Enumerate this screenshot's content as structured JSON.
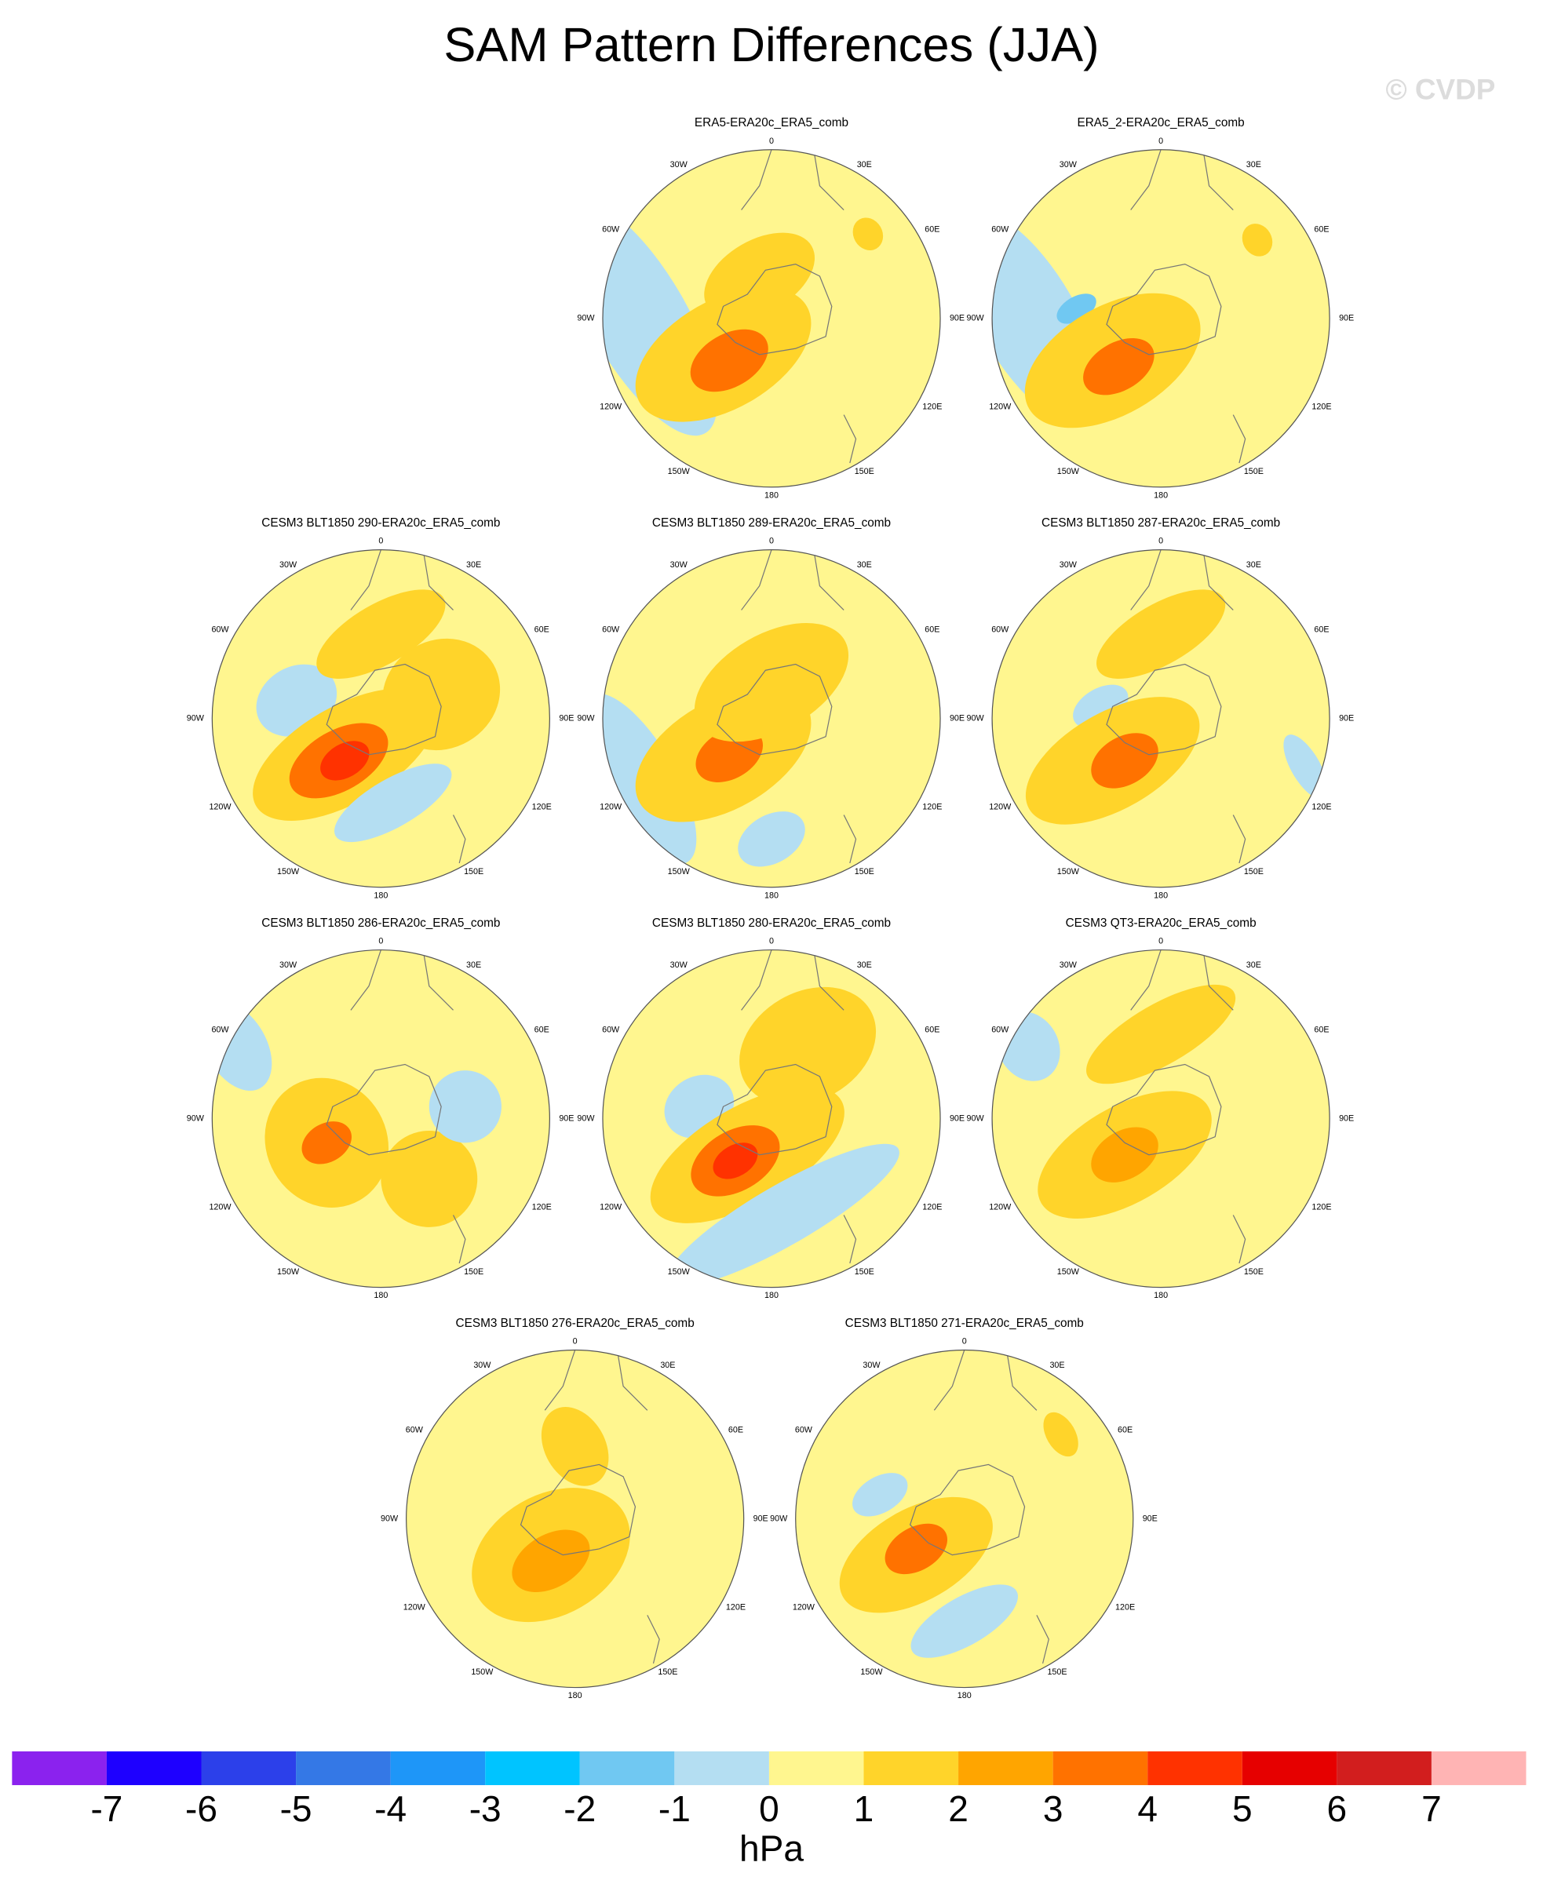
{
  "title": "SAM Pattern Differences (JJA)",
  "watermark": "© CVDP",
  "longitude_labels": [
    "0",
    "30E",
    "60E",
    "90E",
    "120E",
    "150E",
    "180",
    "150W",
    "120W",
    "90W",
    "60W",
    "30W"
  ],
  "panels": [
    {
      "title": "ERA5-ERA20c_ERA5_comb"
    },
    {
      "title": "ERA5_2-ERA20c_ERA5_comb"
    },
    {
      "title": "CESM3 BLT1850 290-ERA20c_ERA5_comb"
    },
    {
      "title": "CESM3 BLT1850 289-ERA20c_ERA5_comb"
    },
    {
      "title": "CESM3 BLT1850 287-ERA20c_ERA5_comb"
    },
    {
      "title": "CESM3 BLT1850 286-ERA20c_ERA5_comb"
    },
    {
      "title": "CESM3 BLT1850 280-ERA20c_ERA5_comb"
    },
    {
      "title": "CESM3 QT3-ERA20c_ERA5_comb"
    },
    {
      "title": "CESM3 BLT1850 276-ERA20c_ERA5_comb"
    },
    {
      "title": "CESM3 BLT1850 271-ERA20c_ERA5_comb"
    }
  ],
  "colorbar": {
    "levels": [
      -7,
      -6,
      -5,
      -4,
      -3,
      -2,
      -1,
      0,
      1,
      2,
      3,
      4,
      5,
      6,
      7
    ],
    "colors": [
      "#8b22ee",
      "#1e00ff",
      "#2c40ea",
      "#3478e6",
      "#1e96f8",
      "#00c4ff",
      "#70c8f2",
      "#b4def2",
      "#fff68f",
      "#ffd42a",
      "#ffa500",
      "#ff7200",
      "#ff3200",
      "#e60000",
      "#d21e1e",
      "#ffb4b4"
    ],
    "label": "hPa"
  }
}
